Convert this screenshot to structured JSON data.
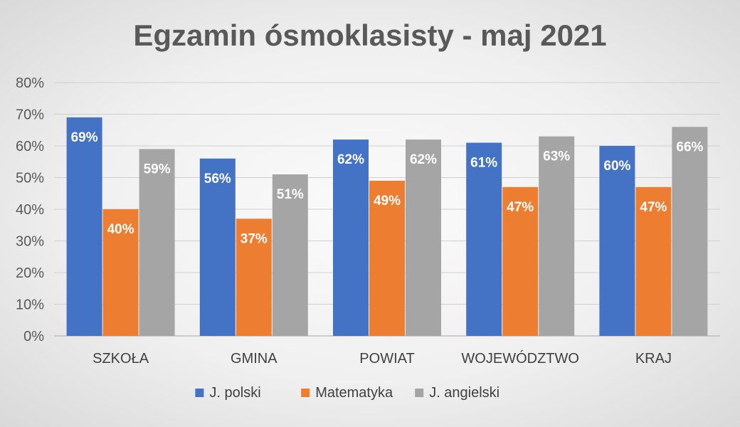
{
  "chart_data": {
    "type": "bar",
    "title": "Egzamin ósmoklasisty - maj 2021",
    "xlabel": "",
    "ylabel": "",
    "categories": [
      "SZKOŁA",
      "GMINA",
      "POWIAT",
      "WOJEWÓDZTWO",
      "KRAJ"
    ],
    "series": [
      {
        "name": "J. polski",
        "color": "#4472c4",
        "values": [
          69,
          56,
          62,
          61,
          60
        ]
      },
      {
        "name": "Matematyka",
        "color": "#ed7d31",
        "values": [
          40,
          37,
          49,
          47,
          47
        ]
      },
      {
        "name": "J. angielski",
        "color": "#a5a5a5",
        "values": [
          59,
          51,
          62,
          63,
          66
        ]
      }
    ],
    "ylim": [
      0,
      80
    ],
    "yticks": [
      "0%",
      "10%",
      "20%",
      "30%",
      "40%",
      "50%",
      "60%",
      "70%",
      "80%"
    ],
    "value_format": "percent",
    "grid": true,
    "legend_position": "bottom",
    "data_labels": true
  }
}
